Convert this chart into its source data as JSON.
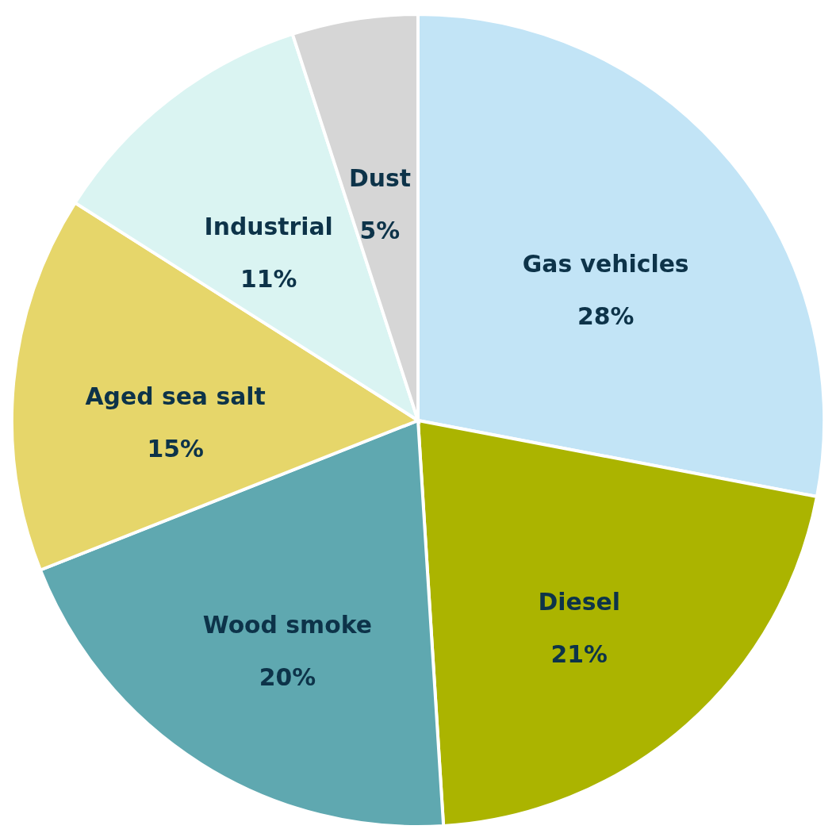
{
  "chart_data": {
    "type": "pie",
    "categories": [
      "Gas vehicles",
      "Diesel",
      "Wood smoke",
      "Aged sea salt",
      "Industrial",
      "Dust"
    ],
    "values": [
      28,
      21,
      20,
      15,
      11,
      5
    ],
    "value_labels": [
      "28%",
      "21%",
      "20%",
      "15%",
      "11%",
      "5%"
    ],
    "colors": [
      "#c2e4f6",
      "#abb400",
      "#5fa8b0",
      "#e6d66a",
      "#daf4f2",
      "#d6d6d6"
    ],
    "legend": false
  }
}
